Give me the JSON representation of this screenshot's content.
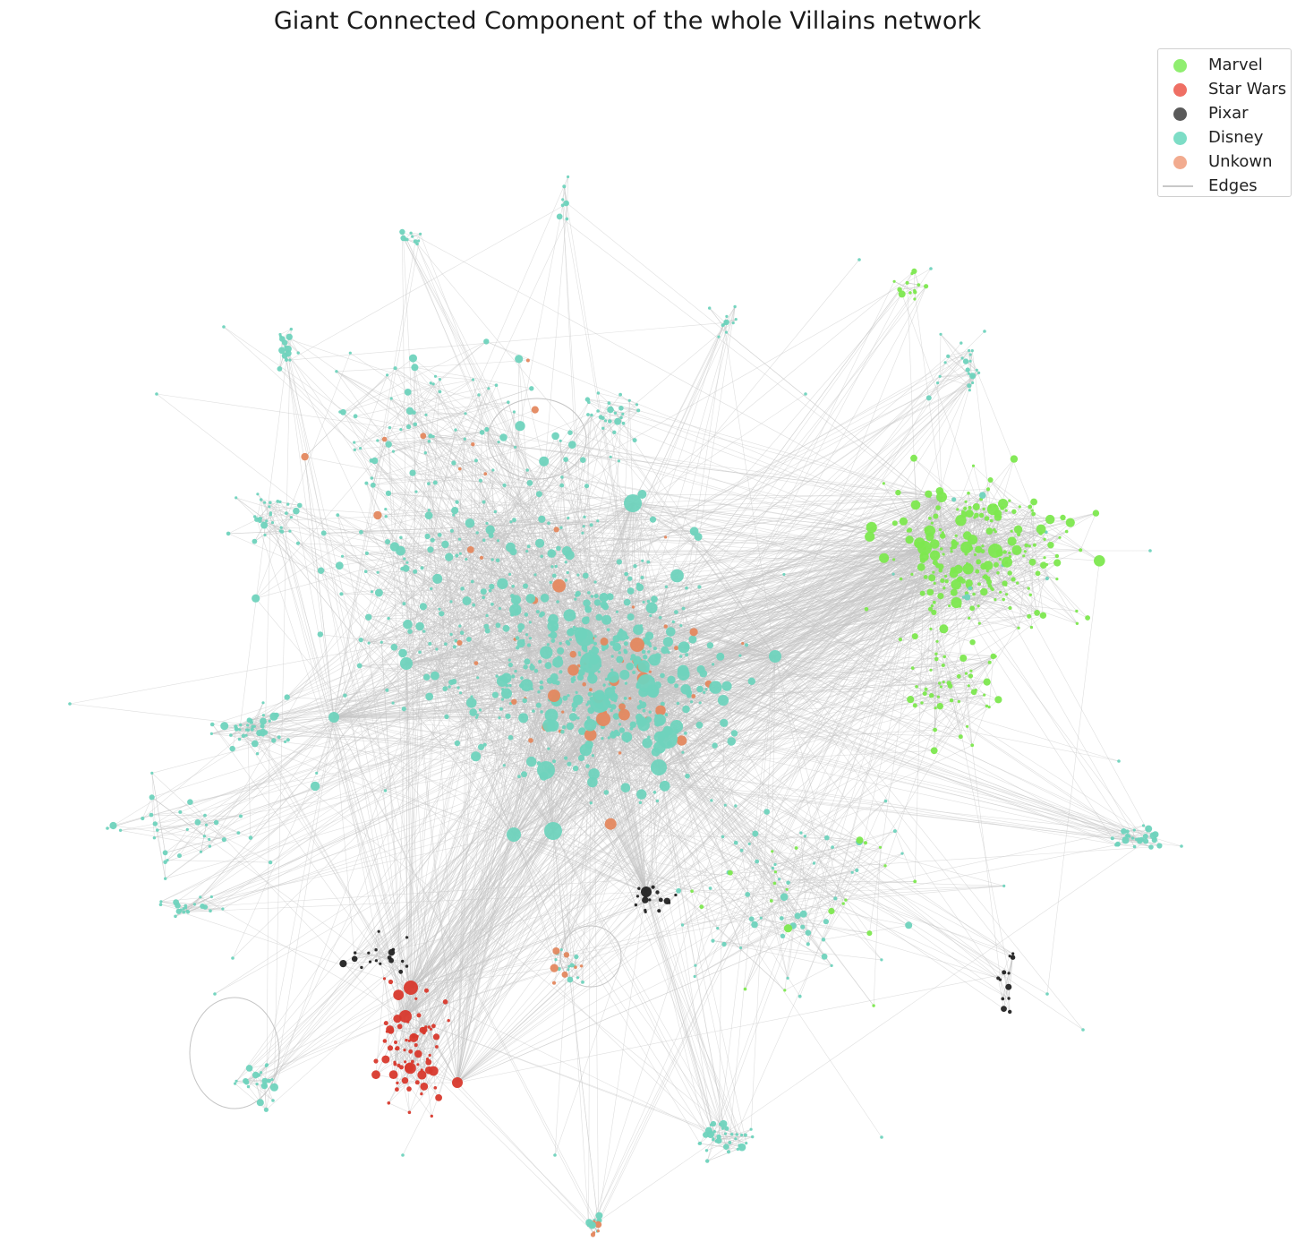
{
  "title": "Giant Connected Component of the whole Villains network",
  "legend": {
    "placement": "upper-right",
    "items": [
      {
        "label": "Marvel",
        "color": "#90ee70",
        "kind": "dot"
      },
      {
        "label": "Star Wars",
        "color": "#ef6f64",
        "kind": "dot"
      },
      {
        "label": "Pixar",
        "color": "#5a5a5a",
        "kind": "dot"
      },
      {
        "label": "Disney",
        "color": "#7dddc6",
        "kind": "dot"
      },
      {
        "label": "Unkown",
        "color": "#f2ab8f",
        "kind": "dot"
      },
      {
        "label": "Edges",
        "color": "#c8c8c8",
        "kind": "line"
      }
    ]
  },
  "colors": {
    "marvel": "#7de84f",
    "starwars": "#d8392d",
    "pixar": "#222222",
    "disney": "#6fd3bd",
    "unknown": "#e4885f",
    "edge": "#c4c4c4"
  }
}
